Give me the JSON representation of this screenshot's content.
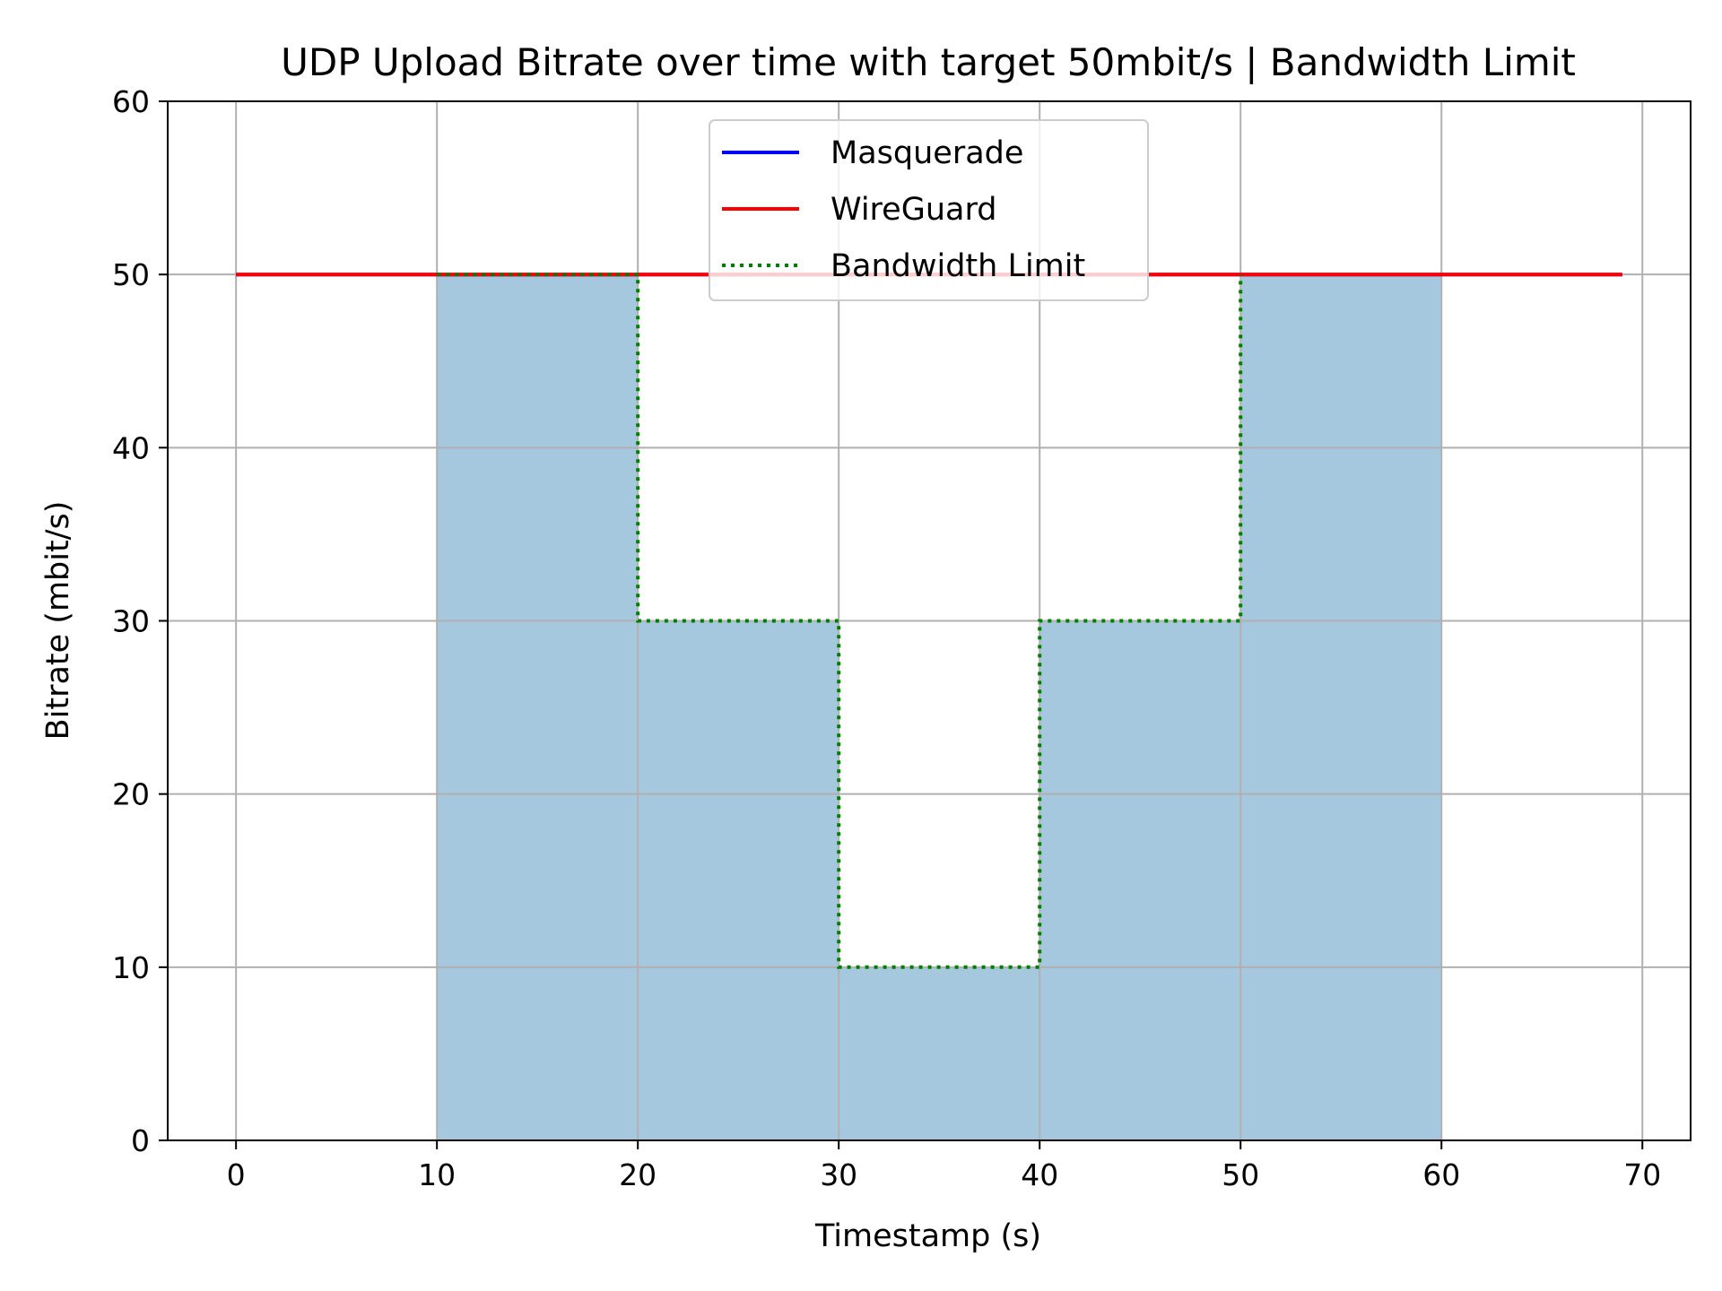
{
  "chart_data": {
    "type": "line",
    "title": "UDP Upload Bitrate over time with target 50mbit/s | Bandwidth Limit",
    "xlabel": "Timestamp (s)",
    "ylabel": "Bitrate (mbit/s)",
    "xlim": [
      -3.4,
      72.4
    ],
    "ylim": [
      0,
      60
    ],
    "xticks": [
      0,
      10,
      20,
      30,
      40,
      50,
      60,
      70
    ],
    "yticks": [
      0,
      10,
      20,
      30,
      40,
      50,
      60
    ],
    "grid": true,
    "legend_position": "upper center",
    "series": [
      {
        "name": "Masquerade",
        "style": "solid",
        "color": "#0000ff",
        "x": [
          0,
          69
        ],
        "y": [
          50,
          50
        ]
      },
      {
        "name": "WireGuard",
        "style": "solid",
        "color": "#ff0000",
        "x": [
          0,
          69
        ],
        "y": [
          50,
          50
        ]
      },
      {
        "name": "Bandwidth Limit",
        "style": "dotted",
        "color": "#008000",
        "x": [
          10,
          20,
          20,
          30,
          30,
          40,
          40,
          50,
          50
        ],
        "y": [
          50,
          50,
          30,
          30,
          10,
          10,
          30,
          30,
          50
        ]
      }
    ],
    "shaded_regions": [
      {
        "x0": 10,
        "x1": 20,
        "y": 50
      },
      {
        "x0": 20,
        "x1": 30,
        "y": 30
      },
      {
        "x0": 30,
        "x1": 40,
        "y": 10
      },
      {
        "x0": 40,
        "x1": 50,
        "y": 30
      },
      {
        "x0": 50,
        "x1": 60,
        "y": 50
      }
    ],
    "shade_color": "#a6c8df"
  }
}
